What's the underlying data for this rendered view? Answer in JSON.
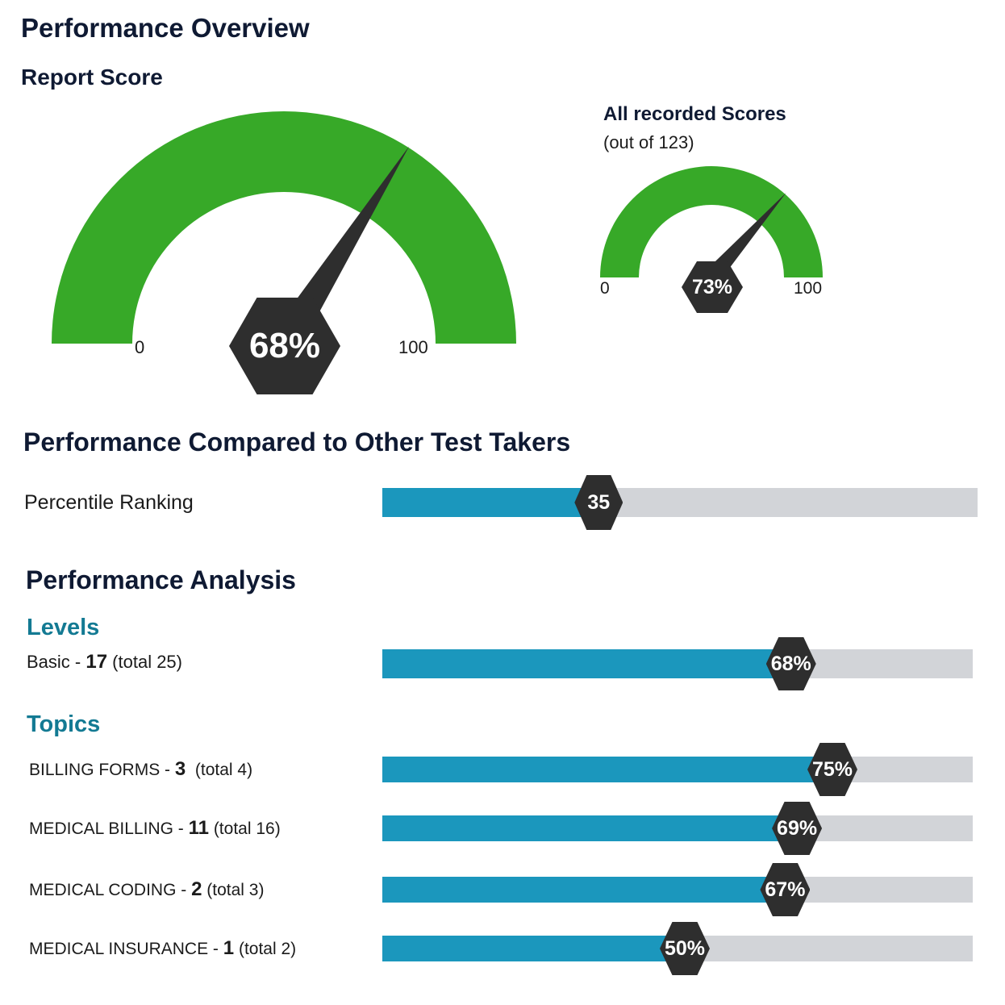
{
  "page": {
    "title": "Performance Overview",
    "report_score_title": "Report Score"
  },
  "report_gauge": {
    "value": 68,
    "value_label": "68%",
    "min_label": "0",
    "max_label": "100",
    "color": "#37a928",
    "needle_color": "#2e2e2e"
  },
  "all_scores_gauge": {
    "title": "All recorded Scores",
    "subtitle": "(out of 123)",
    "value": 73,
    "value_label": "73%",
    "min_label": "0",
    "max_label": "100",
    "color": "#37a928"
  },
  "comparison": {
    "title": "Performance Compared to Other Test Takers",
    "percentile": {
      "label": "Percentile Ranking",
      "value": 35,
      "value_label": "35"
    }
  },
  "analysis": {
    "title": "Performance Analysis",
    "levels": {
      "title": "Levels",
      "items": [
        {
          "name": "Basic - ",
          "score": "17",
          "total": " (total 25)",
          "percent": 68,
          "percent_label": "68%"
        }
      ]
    },
    "topics": {
      "title": "Topics",
      "items": [
        {
          "name": "BILLING FORMS - ",
          "score": "3",
          "total": "  (total 4)",
          "percent": 75,
          "percent_label": "75%"
        },
        {
          "name": "MEDICAL BILLING - ",
          "score": "11",
          "total": " (total 16)",
          "percent": 69,
          "percent_label": "69%"
        },
        {
          "name": "MEDICAL CODING - ",
          "score": "2",
          "total": " (total 3)",
          "percent": 67,
          "percent_label": "67%"
        },
        {
          "name": "MEDICAL INSURANCE - ",
          "score": "1",
          "total": " (total 2)",
          "percent": 50,
          "percent_label": "50%"
        }
      ]
    }
  },
  "colors": {
    "bar_fill": "#1b97bd",
    "bar_track": "#d2d4d8",
    "marker": "#2e2e2e",
    "heading": "#0f1a33",
    "section_accent": "#137a93"
  }
}
